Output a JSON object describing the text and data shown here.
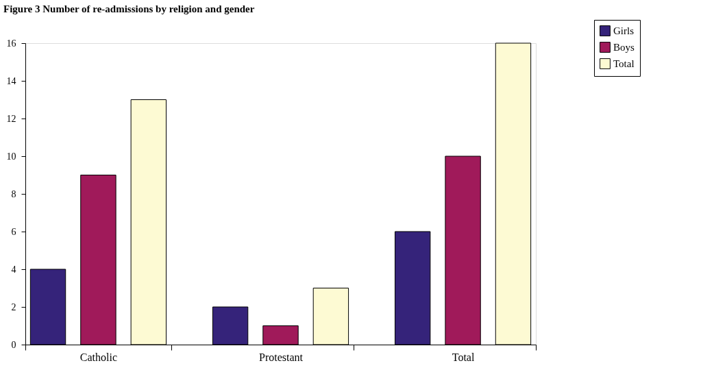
{
  "chart_data": {
    "type": "bar",
    "title": "Figure 3 Number of re-admissions by religion and gender",
    "categories": [
      "Catholic",
      "Protestant",
      "Total"
    ],
    "series": [
      {
        "name": "Girls",
        "color": "#35237a",
        "values": [
          4,
          2,
          6
        ]
      },
      {
        "name": "Boys",
        "color": "#a01a5a",
        "values": [
          9,
          1,
          10
        ]
      },
      {
        "name": "Total",
        "color": "#fdfad3",
        "values": [
          13,
          3,
          16
        ]
      }
    ],
    "ylim": [
      0,
      16
    ],
    "yticks": [
      0,
      2,
      4,
      6,
      8,
      10,
      12,
      14,
      16
    ],
    "grid": false,
    "legend": "top right"
  }
}
